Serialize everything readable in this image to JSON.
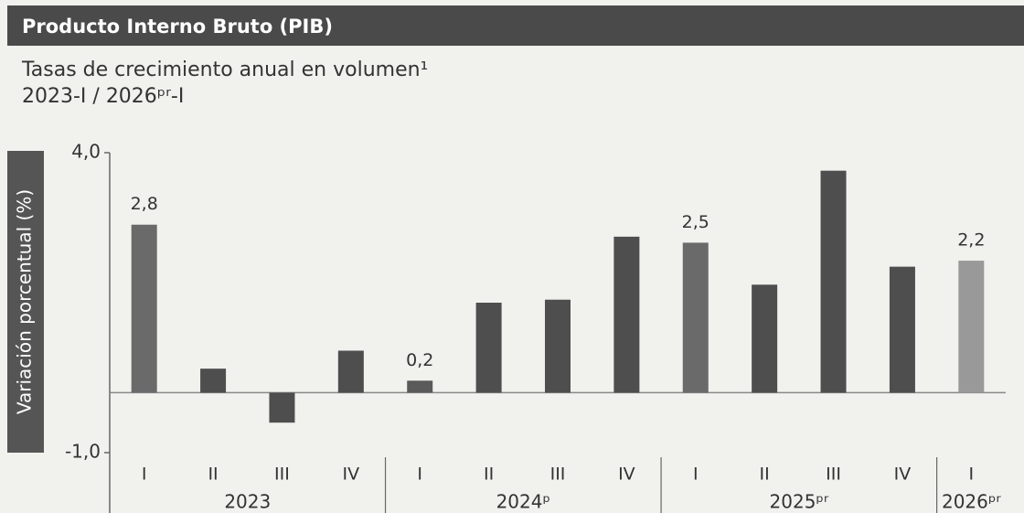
{
  "chart_data": {
    "type": "bar",
    "header": "Producto Interno Bruto (PIB)",
    "title": "Tasas de crecimiento anual en volumen¹",
    "subtitle": "2023-I / 2026ᵖʳ-I",
    "ylabel": "Variación porcentual (%)",
    "groups": [
      {
        "label": "2023",
        "categories": [
          "I",
          "II",
          "III",
          "IV"
        ]
      },
      {
        "label": "2024ᵖ",
        "categories": [
          "I",
          "II",
          "III",
          "IV"
        ]
      },
      {
        "label": "2025ᵖʳ",
        "categories": [
          "I",
          "II",
          "III",
          "IV"
        ]
      },
      {
        "label": "2026ᵖʳ",
        "categories": [
          "I"
        ]
      }
    ],
    "values": [
      2.8,
      0.4,
      -0.5,
      0.7,
      0.2,
      1.5,
      1.55,
      2.6,
      2.5,
      1.8,
      3.7,
      2.1,
      2.2
    ],
    "value_labels": [
      "2,8",
      null,
      null,
      null,
      "0,2",
      null,
      null,
      null,
      "2,5",
      null,
      null,
      null,
      "2,2"
    ],
    "colors": [
      "#6a6a6a",
      "#4e4e4e",
      "#4e4e4e",
      "#4e4e4e",
      "#5a5a5a",
      "#4e4e4e",
      "#4e4e4e",
      "#4e4e4e",
      "#6a6a6a",
      "#4e4e4e",
      "#4e4e4e",
      "#4e4e4e",
      "#999999"
    ],
    "ylim": [
      -1,
      4
    ],
    "yticks": [
      {
        "value": -1,
        "label": "-1,0"
      },
      {
        "value": 4,
        "label": "4,0"
      }
    ]
  }
}
